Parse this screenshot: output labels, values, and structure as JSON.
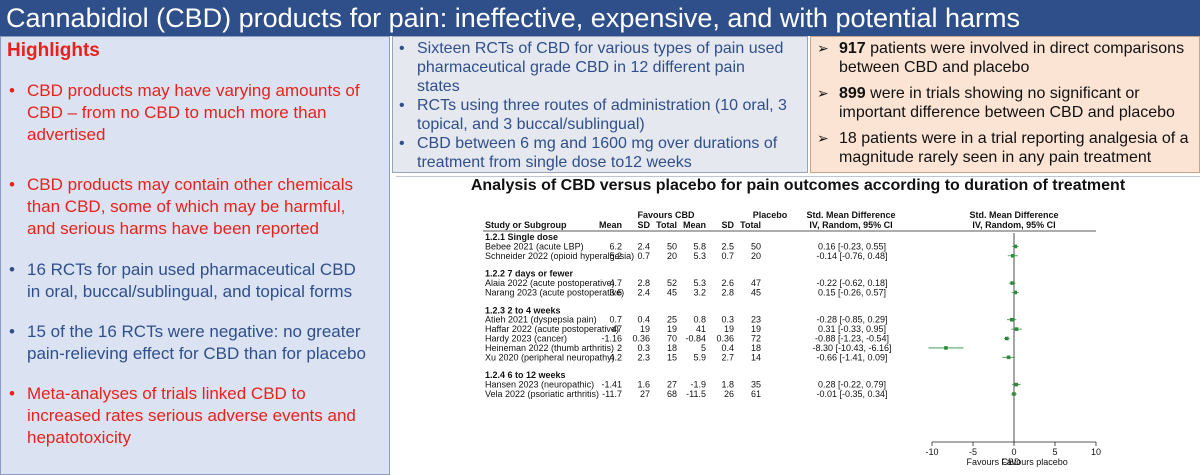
{
  "title": "Cannabidiol (CBD) products for pain: ineffective, expensive, and with potential harms",
  "highlights": {
    "heading": "Highlights",
    "items": [
      {
        "lines": [
          "CBD products may have varying amounts of",
          "CBD – from no CBD to much more than",
          "advertised"
        ],
        "color": "red"
      },
      {
        "lines": [
          "CBD products may contain other chemicals",
          "than CBD, some of which may be harmful,",
          "and serious harms have been reported"
        ],
        "color": "red"
      },
      {
        "lines": [
          "16 RCTs for pain used pharmaceutical CBD",
          "in oral, buccal/sublingual, and topical forms"
        ],
        "color": "dark"
      },
      {
        "lines": [
          "15 of the 16 RCTs were negative: no greater",
          "pain-relieving effect for CBD than for placebo"
        ],
        "color": "dark"
      },
      {
        "lines": [
          "Meta-analyses of trials linked CBD to",
          "increased rates serious adverse events and",
          "hepatotoxicity"
        ],
        "color": "red"
      }
    ]
  },
  "study_summary": [
    {
      "lines": [
        "Sixteen RCTs of CBD for various types of pain used",
        "pharmaceutical grade CBD in 12 different pain",
        "states"
      ]
    },
    {
      "lines": [
        "RCTs using three routes of administration (10 oral, 3",
        "topical, and 3 buccal/sublingual)"
      ]
    },
    {
      "lines": [
        "CBD between 6 mg and 1600 mg over durations of",
        "treatment  from single dose to12 weeks"
      ]
    }
  ],
  "patient_summary": [
    {
      "bold": "917",
      "lines": [
        " patients were involved in direct comparisons",
        "between CBD and placebo"
      ]
    },
    {
      "bold": "899",
      "lines": [
        " were in trials showing no significant or",
        "important difference between CBD and placebo"
      ]
    },
    {
      "bold": "",
      "lines": [
        "18 patients were in a trial reporting analgesia of a",
        "magnitude rarely seen in any pain treatment"
      ]
    }
  ],
  "forest_plot": {
    "title": "Analysis of CBD versus placebo for pain outcomes according to duration of treatment",
    "headers": {
      "favours_cbd": "Favours CBD",
      "placebo": "Placebo",
      "smd": "Std. Mean Difference",
      "smd2": "Std. Mean Difference",
      "study": "Study or Subgroup",
      "mean": "Mean",
      "sd": "SD",
      "total": "Total",
      "mean2": "Mean",
      "sd2": "SD",
      "total2": "Total",
      "method": "IV, Random, 95% CI",
      "method2": "IV, Random, 95% CI"
    },
    "axis_ticks": [
      "-10",
      "-5",
      "0",
      "5",
      "10"
    ],
    "favours_left": "Favours CBD",
    "favours_right": "Favours placebo",
    "groups": [
      {
        "label": "1.2.1 Single dose",
        "studies": [
          {
            "name": "Bebee 2021 (acute LBP)",
            "cbd_mean": "6.2",
            "cbd_sd": "2.4",
            "cbd_total": "50",
            "pl_mean": "5.8",
            "pl_sd": "2.5",
            "pl_total": "50",
            "ci": "0.16 [-0.23, 0.55]",
            "smd": 0.16,
            "lo": -0.23,
            "hi": 0.55
          },
          {
            "name": "Schneider 2022 (opioid hyperalgesia)",
            "cbd_mean": "5.2",
            "cbd_sd": "0.7",
            "cbd_total": "20",
            "pl_mean": "5.3",
            "pl_sd": "0.7",
            "pl_total": "20",
            "ci": "-0.14 [-0.76, 0.48]",
            "smd": -0.14,
            "lo": -0.76,
            "hi": 0.48
          }
        ]
      },
      {
        "label": "1.2.2 7 days or fewer",
        "studies": [
          {
            "name": "Alaia 2022 (acute postoperative)",
            "cbd_mean": "4.7",
            "cbd_sd": "2.8",
            "cbd_total": "52",
            "pl_mean": "5.3",
            "pl_sd": "2.6",
            "pl_total": "47",
            "ci": "-0.22 [-0.62, 0.18]",
            "smd": -0.22,
            "lo": -0.62,
            "hi": 0.18
          },
          {
            "name": "Narang 2023 (acute postoperative)",
            "cbd_mean": "3.6",
            "cbd_sd": "2.4",
            "cbd_total": "45",
            "pl_mean": "3.2",
            "pl_sd": "2.8",
            "pl_total": "45",
            "ci": "0.15 [-0.26, 0.57]",
            "smd": 0.15,
            "lo": -0.26,
            "hi": 0.57
          }
        ]
      },
      {
        "label": "1.2.3 2 to 4 weeks",
        "studies": [
          {
            "name": "Atieh 2021 (dyspepsia pain)",
            "cbd_mean": "0.7",
            "cbd_sd": "0.4",
            "cbd_total": "25",
            "pl_mean": "0.8",
            "pl_sd": "0.3",
            "pl_total": "23",
            "ci": "-0.28 [-0.85, 0.29]",
            "smd": -0.28,
            "lo": -0.85,
            "hi": 0.29
          },
          {
            "name": "Haffar 2022 (acute postoperative)",
            "cbd_mean": "47",
            "cbd_sd": "19",
            "cbd_total": "19",
            "pl_mean": "41",
            "pl_sd": "19",
            "pl_total": "19",
            "ci": "0.31 [-0.33, 0.95]",
            "smd": 0.31,
            "lo": -0.33,
            "hi": 0.95
          },
          {
            "name": "Hardy 2023 (cancer)",
            "cbd_mean": "-1.16",
            "cbd_sd": "0.36",
            "cbd_total": "70",
            "pl_mean": "-0.84",
            "pl_sd": "0.36",
            "pl_total": "72",
            "ci": "-0.88 [-1.23, -0.54]",
            "smd": -0.88,
            "lo": -1.23,
            "hi": -0.54
          },
          {
            "name": "Heineman 2022 (thumb arthritis)",
            "cbd_mean": "2",
            "cbd_sd": "0.3",
            "cbd_total": "18",
            "pl_mean": "5",
            "pl_sd": "0.4",
            "pl_total": "18",
            "ci": "-8.30 [-10.43, -6.16]",
            "smd": -8.3,
            "lo": -10.43,
            "hi": -6.16
          },
          {
            "name": "Xu 2020 (peripheral neuropathy)",
            "cbd_mean": "4.2",
            "cbd_sd": "2.3",
            "cbd_total": "15",
            "pl_mean": "5.9",
            "pl_sd": "2.7",
            "pl_total": "14",
            "ci": "-0.66 [-1.41, 0.09]",
            "smd": -0.66,
            "lo": -1.41,
            "hi": 0.09
          }
        ]
      },
      {
        "label": "1.2.4 6 to 12 weeks",
        "studies": [
          {
            "name": "Hansen 2023 (neuropathic)",
            "cbd_mean": "-1.41",
            "cbd_sd": "1.6",
            "cbd_total": "27",
            "pl_mean": "-1.9",
            "pl_sd": "1.8",
            "pl_total": "35",
            "ci": "0.28 [-0.22, 0.79]",
            "smd": 0.28,
            "lo": -0.22,
            "hi": 0.79
          },
          {
            "name": "Vela 2022 (psoriatic arthritis)",
            "cbd_mean": "-11.7",
            "cbd_sd": "27",
            "cbd_total": "68",
            "pl_mean": "-11.5",
            "pl_sd": "26",
            "pl_total": "61",
            "ci": "-0.01 [-0.35, 0.34]",
            "smd": -0.01,
            "lo": -0.35,
            "hi": 0.34
          }
        ]
      }
    ]
  },
  "colors": {
    "title_bg": "#2f4f8a",
    "left_bg": "#dbe3f3",
    "mid_bg": "#e6e8ef",
    "right_bg": "#fbe4d4",
    "highlight_red": "#e8211b",
    "text_blue": "#2f4f8a",
    "marker_green": "#2e8b3e"
  }
}
